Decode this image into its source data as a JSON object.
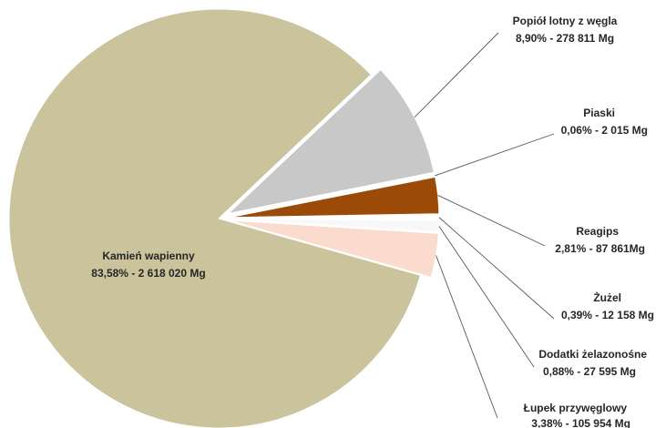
{
  "chart_data": {
    "type": "pie",
    "title": "",
    "slices": [
      {
        "name": "Popiół lotny z węgla",
        "label": "8,90% - 278 811 Mg",
        "percent": 8.9,
        "value_mg": 278811,
        "color": "#C8C8C8"
      },
      {
        "name": "Piaski",
        "label": "0,06% - 2 015 Mg",
        "percent": 0.06,
        "value_mg": 2015,
        "color": "#BFBFBF"
      },
      {
        "name": "Reagips",
        "label": "2,81% - 87 861Mg",
        "percent": 2.81,
        "value_mg": 87861,
        "color": "#9C4A08"
      },
      {
        "name": "Żużel",
        "label": "0,39% - 12 158 Mg",
        "percent": 0.39,
        "value_mg": 12158,
        "color": "#FFFFFF"
      },
      {
        "name": "Dodatki żelazonośne",
        "label": "0,88% - 27 595 Mg",
        "percent": 0.88,
        "value_mg": 27595,
        "color": "#F8F8F8"
      },
      {
        "name": "Łupek przywęglowy",
        "label": "3,38% - 105 954 Mg",
        "percent": 3.38,
        "value_mg": 105954,
        "color": "#FBDBCD"
      },
      {
        "name": "Kamień wapienny",
        "label": "83,58% - 2 618 020 Mg",
        "percent": 83.58,
        "value_mg": 2618020,
        "color": "#CBC39C"
      }
    ]
  }
}
